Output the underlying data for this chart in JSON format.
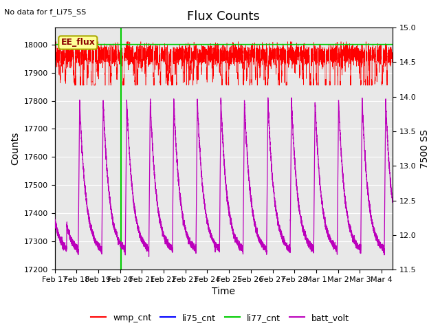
{
  "title": "Flux Counts",
  "top_left_text": "No data for f_Li75_SS",
  "xlabel": "Time",
  "ylabel_left": "Counts",
  "ylabel_right": "7500 SS",
  "annotation_text": "EE_flux",
  "xlim_days": [
    0,
    15.5
  ],
  "ylim_left": [
    17200,
    18060
  ],
  "ylim_right": [
    11.5,
    15.0
  ],
  "x_tick_labels": [
    "Feb 17",
    "Feb 18",
    "Feb 19",
    "Feb 20",
    "Feb 21",
    "Feb 22",
    "Feb 23",
    "Feb 24",
    "Feb 25",
    "Feb 26",
    "Feb 27",
    "Feb 28",
    "Mar 1",
    "Mar 2",
    "Mar 3",
    "Mar 4"
  ],
  "x_tick_positions": [
    0,
    1,
    2,
    3,
    4,
    5,
    6,
    7,
    8,
    9,
    10,
    11,
    12,
    13,
    14,
    15
  ],
  "yticks_left": [
    17200,
    17300,
    17400,
    17500,
    17600,
    17700,
    17800,
    17900,
    18000
  ],
  "yticks_right": [
    11.5,
    12.0,
    12.5,
    13.0,
    13.5,
    14.0,
    14.5,
    15.0
  ],
  "vline_x": 3.05,
  "annotation_box_color": "#ffff99",
  "annotation_box_edge": "#aaaa00",
  "background_color": "#e8e8e8",
  "wmp_color": "#ff0000",
  "li75_color": "#0000ff",
  "li77_color": "#00cc00",
  "batt_color": "#bb00bb",
  "title_fontsize": 13,
  "axis_label_fontsize": 10,
  "tick_fontsize": 8,
  "legend_fontsize": 9,
  "figsize": [
    6.4,
    4.8
  ],
  "dpi": 100
}
